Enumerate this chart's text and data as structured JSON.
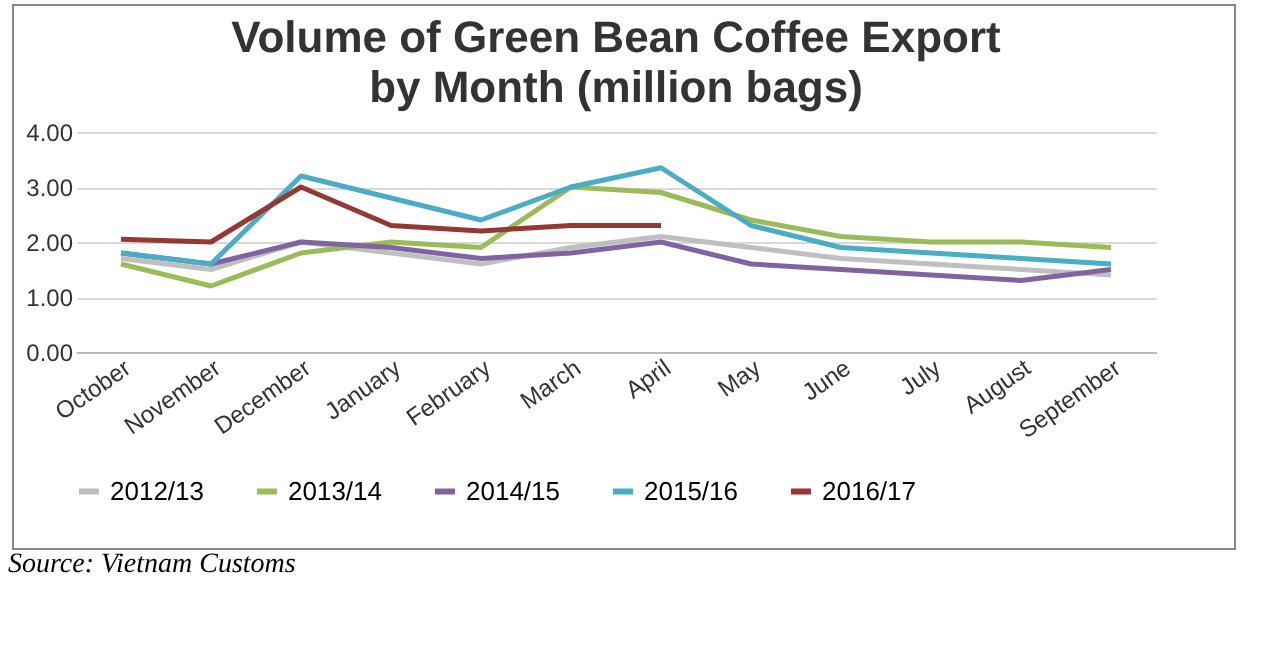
{
  "chart_data": {
    "type": "line",
    "title": "Volume of Green Bean Coffee Export",
    "subtitle": "by Month (million bags)",
    "categories": [
      "October",
      "November",
      "December",
      "January",
      "February",
      "March",
      "April",
      "May",
      "June",
      "July",
      "August",
      "September"
    ],
    "series": [
      {
        "name": "2012/13",
        "color": "#bfbfbf",
        "values": [
          1.7,
          1.5,
          2.0,
          1.8,
          1.6,
          1.9,
          2.1,
          1.9,
          1.7,
          1.6,
          1.5,
          1.4
        ]
      },
      {
        "name": "2013/14",
        "color": "#9bbb59",
        "values": [
          1.6,
          1.2,
          1.8,
          2.0,
          1.9,
          3.0,
          2.9,
          2.4,
          2.1,
          2.0,
          2.0,
          1.9
        ]
      },
      {
        "name": "2014/15",
        "color": "#8064a2",
        "values": [
          1.8,
          1.6,
          2.0,
          1.9,
          1.7,
          1.8,
          2.0,
          1.6,
          1.5,
          1.4,
          1.3,
          1.5
        ]
      },
      {
        "name": "2015/16",
        "color": "#4bacc6",
        "values": [
          1.8,
          1.6,
          3.2,
          2.8,
          2.4,
          3.0,
          3.35,
          2.3,
          1.9,
          1.8,
          1.7,
          1.6
        ]
      },
      {
        "name": "2016/17",
        "color": "#953735",
        "values": [
          2.05,
          2.0,
          3.0,
          2.3,
          2.2,
          2.3,
          2.3,
          null,
          null,
          null,
          null,
          null
        ]
      }
    ],
    "ylim": [
      0,
      4
    ],
    "yticks": [
      {
        "value": 0,
        "label": "0.00"
      },
      {
        "value": 1,
        "label": "1.00"
      },
      {
        "value": 2,
        "label": "2.00"
      },
      {
        "value": 3,
        "label": "3.00"
      },
      {
        "value": 4,
        "label": "4.00"
      }
    ],
    "grid": "y",
    "legend": "bottom",
    "marker": "none",
    "annotations": [
      "Source: Vietnam Customs"
    ]
  }
}
